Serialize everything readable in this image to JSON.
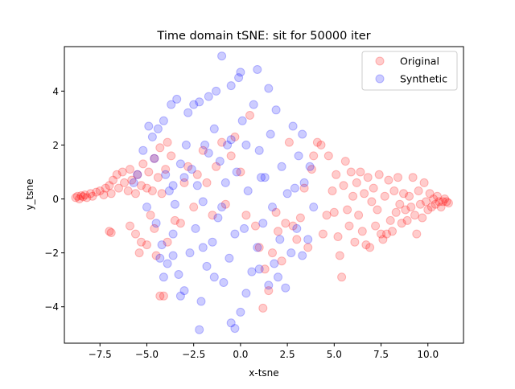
{
  "chart_data": {
    "type": "scatter",
    "title": "Time domain tSNE: sit for 50000 iter",
    "xlabel": "x-tsne",
    "ylabel": "y_tsne",
    "xlim": [
      -9.4,
      11.9
    ],
    "ylim": [
      -5.35,
      5.65
    ],
    "xticks": [
      -7.5,
      -5.0,
      -2.5,
      0.0,
      2.5,
      5.0,
      7.5,
      10.0
    ],
    "xtick_labels": [
      "−7.5",
      "−5.0",
      "−2.5",
      "0.0",
      "2.5",
      "5.0",
      "7.5",
      "10.0"
    ],
    "yticks": [
      -4,
      -2,
      0,
      2,
      4
    ],
    "ytick_labels": [
      "−4",
      "−2",
      "0",
      "2",
      "4"
    ],
    "grid": false,
    "legend_position": "top-right",
    "series": [
      {
        "name": "Original",
        "color": "#ff0000",
        "alpha": 0.2,
        "points": [
          [
            -8.8,
            0.05
          ],
          [
            -8.7,
            0.1
          ],
          [
            -8.6,
            0.0
          ],
          [
            -8.5,
            0.12
          ],
          [
            -8.4,
            0.08
          ],
          [
            -8.3,
            0.15
          ],
          [
            -8.2,
            0.05
          ],
          [
            -8.0,
            0.2
          ],
          [
            -7.9,
            0.1
          ],
          [
            -7.7,
            0.25
          ],
          [
            -7.5,
            0.3
          ],
          [
            -7.3,
            0.15
          ],
          [
            -7.2,
            0.4
          ],
          [
            -7.0,
            0.5
          ],
          [
            -6.9,
            0.2
          ],
          [
            -6.8,
            0.7
          ],
          [
            -6.6,
            0.9
          ],
          [
            -6.5,
            0.4
          ],
          [
            -6.3,
            1.0
          ],
          [
            -6.2,
            0.6
          ],
          [
            -6.0,
            0.3
          ],
          [
            -5.9,
            1.1
          ],
          [
            -5.8,
            0.7
          ],
          [
            -5.6,
            0.2
          ],
          [
            -5.5,
            0.9
          ],
          [
            -5.3,
            0.5
          ],
          [
            -5.2,
            1.3
          ],
          [
            -5.0,
            0.4
          ],
          [
            -4.9,
            1.0
          ],
          [
            -4.7,
            0.3
          ],
          [
            -4.6,
            1.5
          ],
          [
            -4.4,
            0.8
          ],
          [
            -4.3,
            1.9
          ],
          [
            -4.2,
            0.2
          ],
          [
            -4.0,
            1.1
          ],
          [
            -3.9,
            2.1
          ],
          [
            -3.7,
            1.6
          ],
          [
            -7.0,
            -1.2
          ],
          [
            -6.9,
            -1.25
          ],
          [
            -5.9,
            -1.0
          ],
          [
            -5.6,
            -1.3
          ],
          [
            -5.3,
            -1.6
          ],
          [
            -5.0,
            -1.7
          ],
          [
            -4.8,
            -0.6
          ],
          [
            -4.6,
            -1.1
          ],
          [
            -5.4,
            -2.0
          ],
          [
            -4.5,
            -2.1
          ],
          [
            -4.3,
            -3.6
          ],
          [
            -4.1,
            -3.6
          ],
          [
            -3.9,
            -1.6
          ],
          [
            -3.5,
            -0.8
          ],
          [
            -3.2,
            -0.9
          ],
          [
            -3.0,
            0.6
          ],
          [
            -2.8,
            1.2
          ],
          [
            -2.5,
            -0.3
          ],
          [
            -2.3,
            0.9
          ],
          [
            -2.0,
            1.8
          ],
          [
            -1.8,
            0.6
          ],
          [
            -1.5,
            -0.6
          ],
          [
            -1.3,
            1.2
          ],
          [
            -1.0,
            2.1
          ],
          [
            -0.8,
            -0.2
          ],
          [
            -0.5,
            1.6
          ],
          [
            -0.3,
            2.3
          ],
          [
            0.0,
            1.0
          ],
          [
            0.3,
            -0.6
          ],
          [
            0.5,
            3.1
          ],
          [
            0.8,
            -1.0
          ],
          [
            1.0,
            -1.8
          ],
          [
            1.2,
            -4.05
          ],
          [
            1.3,
            -2.6
          ],
          [
            1.5,
            -3.4
          ],
          [
            1.7,
            -2.0
          ],
          [
            1.9,
            -0.5
          ],
          [
            2.0,
            -1.2
          ],
          [
            2.2,
            -2.3
          ],
          [
            2.4,
            -0.9
          ],
          [
            2.6,
            2.1
          ],
          [
            2.8,
            -1.0
          ],
          [
            3.0,
            -1.5
          ],
          [
            3.2,
            -0.7
          ],
          [
            3.4,
            0.4
          ],
          [
            3.6,
            -1.8
          ],
          [
            3.8,
            1.1
          ],
          [
            3.9,
            1.6
          ],
          [
            4.1,
            2.1
          ],
          [
            4.3,
            2.0
          ],
          [
            4.4,
            -1.3
          ],
          [
            4.6,
            -0.6
          ],
          [
            4.7,
            1.6
          ],
          [
            4.9,
            0.3
          ],
          [
            5.0,
            -0.5
          ],
          [
            5.1,
            0.9
          ],
          [
            5.2,
            -1.4
          ],
          [
            5.3,
            -2.1
          ],
          [
            5.4,
            -2.9
          ],
          [
            5.5,
            0.5
          ],
          [
            5.6,
            1.4
          ],
          [
            5.7,
            -0.4
          ],
          [
            5.8,
            -1.0
          ],
          [
            5.9,
            1.0
          ],
          [
            6.0,
            0.1
          ],
          [
            6.1,
            -1.6
          ],
          [
            6.2,
            0.6
          ],
          [
            6.3,
            -0.6
          ],
          [
            6.4,
            1.0
          ],
          [
            6.5,
            -1.2
          ],
          [
            6.6,
            0.2
          ],
          [
            6.7,
            -1.7
          ],
          [
            6.8,
            0.8
          ],
          [
            6.9,
            -1.8
          ],
          [
            7.0,
            -0.1
          ],
          [
            7.1,
            0.4
          ],
          [
            7.2,
            -1.0
          ],
          [
            7.3,
            -0.4
          ],
          [
            7.4,
            0.9
          ],
          [
            7.5,
            -1.3
          ],
          [
            7.6,
            -1.5
          ],
          [
            7.7,
            0.1
          ],
          [
            7.8,
            -1.3
          ],
          [
            7.9,
            0.7
          ],
          [
            8.0,
            -0.8
          ],
          [
            8.1,
            -1.2
          ],
          [
            8.2,
            0.3
          ],
          [
            8.3,
            -0.5
          ],
          [
            8.4,
            0.8
          ],
          [
            8.5,
            -0.2
          ],
          [
            8.6,
            -0.9
          ],
          [
            8.7,
            0.2
          ],
          [
            8.8,
            -0.4
          ],
          [
            8.9,
            -0.8
          ],
          [
            9.0,
            0.1
          ],
          [
            9.1,
            -0.3
          ],
          [
            9.2,
            0.8
          ],
          [
            9.3,
            -0.6
          ],
          [
            9.4,
            -1.3
          ],
          [
            9.5,
            0.3
          ],
          [
            9.6,
            -0.2
          ],
          [
            9.7,
            -0.7
          ],
          [
            9.8,
            0.6
          ],
          [
            9.9,
            -0.1
          ],
          [
            10.0,
            -0.4
          ],
          [
            10.1,
            0.2
          ],
          [
            10.2,
            -0.3
          ],
          [
            10.3,
            0.0
          ],
          [
            10.4,
            -0.2
          ],
          [
            10.5,
            0.1
          ],
          [
            10.6,
            -0.1
          ],
          [
            10.7,
            -0.3
          ],
          [
            10.8,
            -0.1
          ],
          [
            10.9,
            0.0
          ],
          [
            11.0,
            -0.1
          ],
          [
            11.1,
            -0.15
          ]
        ]
      },
      {
        "name": "Synthetic",
        "color": "#0000ff",
        "alpha": 0.2,
        "points": [
          [
            -1.0,
            5.3
          ],
          [
            -0.1,
            4.5
          ],
          [
            0.0,
            4.7
          ],
          [
            -0.5,
            4.2
          ],
          [
            0.9,
            4.8
          ],
          [
            -1.3,
            4.0
          ],
          [
            -1.7,
            3.8
          ],
          [
            -2.2,
            3.6
          ],
          [
            -2.8,
            3.2
          ],
          [
            -3.4,
            3.7
          ],
          [
            -3.7,
            3.5
          ],
          [
            -4.1,
            2.9
          ],
          [
            -4.4,
            2.6
          ],
          [
            -4.7,
            2.3
          ],
          [
            -4.9,
            2.7
          ],
          [
            -5.2,
            1.8
          ],
          [
            -5.5,
            0.9
          ],
          [
            -5.7,
            0.6
          ],
          [
            -4.6,
            1.5
          ],
          [
            -4.0,
            0.9
          ],
          [
            -3.8,
            0.3
          ],
          [
            -3.5,
            -0.2
          ],
          [
            -3.2,
            1.3
          ],
          [
            -2.9,
            2.0
          ],
          [
            -2.6,
            1.1
          ],
          [
            -2.3,
            0.5
          ],
          [
            -2.0,
            -0.1
          ],
          [
            -1.7,
            1.7
          ],
          [
            -1.4,
            2.6
          ],
          [
            -1.1,
            1.4
          ],
          [
            -0.8,
            0.6
          ],
          [
            -0.5,
            2.2
          ],
          [
            -0.2,
            1.0
          ],
          [
            0.1,
            2.9
          ],
          [
            0.4,
            0.3
          ],
          [
            0.7,
            3.5
          ],
          [
            1.0,
            1.8
          ],
          [
            1.3,
            0.8
          ],
          [
            1.6,
            2.4
          ],
          [
            1.9,
            3.3
          ],
          [
            2.2,
            1.2
          ],
          [
            2.5,
            0.2
          ],
          [
            2.8,
            2.7
          ],
          [
            3.1,
            1.6
          ],
          [
            3.4,
            0.6
          ],
          [
            3.7,
            1.2
          ],
          [
            3.9,
            -0.3
          ],
          [
            -4.5,
            -0.9
          ],
          [
            -4.2,
            -1.7
          ],
          [
            -3.9,
            -2.4
          ],
          [
            -3.6,
            -1.3
          ],
          [
            -3.3,
            -2.8
          ],
          [
            -3.0,
            -3.4
          ],
          [
            -2.7,
            -2.0
          ],
          [
            -2.4,
            -1.1
          ],
          [
            -2.1,
            -3.8
          ],
          [
            -1.8,
            -2.5
          ],
          [
            -1.5,
            -1.6
          ],
          [
            -1.2,
            -0.7
          ],
          [
            -0.9,
            -3.1
          ],
          [
            -0.6,
            -2.2
          ],
          [
            -0.3,
            -1.3
          ],
          [
            0.0,
            -4.2
          ],
          [
            0.3,
            -3.5
          ],
          [
            0.6,
            -2.7
          ],
          [
            0.9,
            -1.8
          ],
          [
            1.2,
            -0.9
          ],
          [
            1.5,
            -3.2
          ],
          [
            1.8,
            -2.4
          ],
          [
            2.1,
            -1.5
          ],
          [
            2.4,
            -3.3
          ],
          [
            2.7,
            -2.0
          ],
          [
            3.0,
            -1.1
          ],
          [
            3.3,
            -2.1
          ],
          [
            3.6,
            -1.5
          ],
          [
            -2.2,
            -4.85
          ],
          [
            -0.3,
            -4.8
          ],
          [
            -0.5,
            -4.6
          ],
          [
            -3.2,
            -3.6
          ],
          [
            -4.1,
            -2.9
          ],
          [
            -4.3,
            -2.2
          ],
          [
            -5.0,
            -0.3
          ],
          [
            -1.0,
            -0.3
          ],
          [
            1.7,
            -0.3
          ],
          [
            -2.5,
            3.5
          ],
          [
            -1.9,
            2.0
          ],
          [
            -0.7,
            2.0
          ],
          [
            0.3,
            2.0
          ],
          [
            1.1,
            0.8
          ],
          [
            -3.0,
            0.8
          ],
          [
            -2.0,
            -1.8
          ],
          [
            0.2,
            -1.1
          ],
          [
            1.0,
            -2.6
          ],
          [
            2.0,
            -2.9
          ],
          [
            -1.4,
            -2.9
          ],
          [
            -3.6,
            0.5
          ],
          [
            2.9,
            0.4
          ],
          [
            3.3,
            2.4
          ],
          [
            1.5,
            4.1
          ],
          [
            -3.6,
            -2.1
          ]
        ]
      }
    ]
  }
}
